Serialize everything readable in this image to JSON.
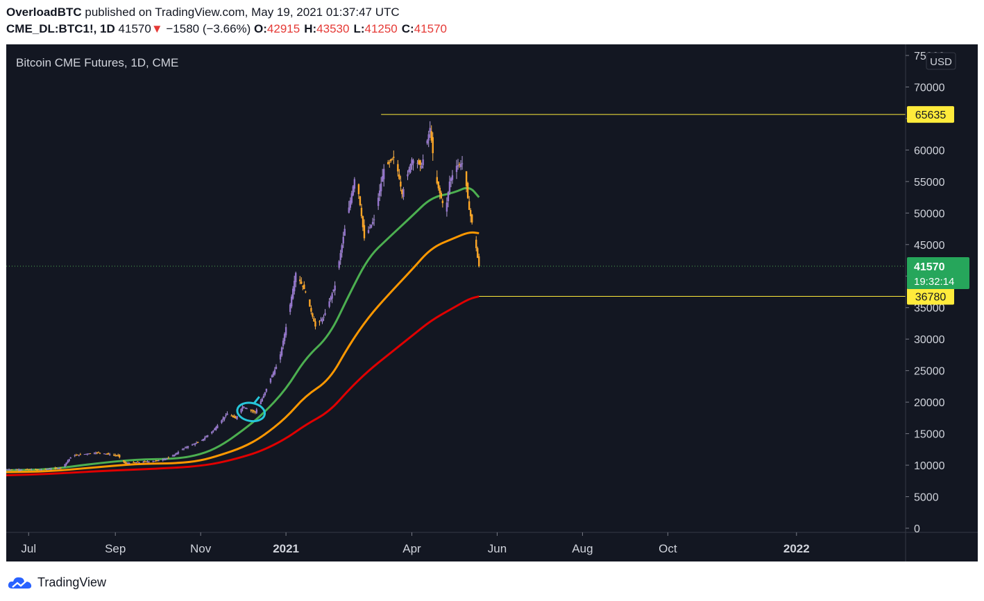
{
  "header": {
    "author": "OverloadBTC",
    "published_text": " published on TradingView.com, May 19, 2021 01:37:47 UTC",
    "symbol": "CME_DL:BTC1!, 1D",
    "last": "41570",
    "arrow": "▼",
    "change": "−1580 (−3.66%)",
    "ohlc": [
      {
        "label": "O:",
        "value": "42915"
      },
      {
        "label": "H:",
        "value": "43530"
      },
      {
        "label": "L:",
        "value": "41250"
      },
      {
        "label": "C:",
        "value": "41570"
      }
    ]
  },
  "chart_data": {
    "type": "candlestick",
    "title": "Bitcoin CME Futures, 1D, CME",
    "currency": "USD",
    "ylim": [
      0,
      75000
    ],
    "y_ticks": [
      0,
      5000,
      10000,
      15000,
      20000,
      25000,
      30000,
      35000,
      40000,
      45000,
      50000,
      55000,
      60000,
      65000,
      70000,
      75000
    ],
    "x_tick_labels": [
      "Jul",
      "Sep",
      "Nov",
      "2021",
      "Apr",
      "Jun",
      "Aug",
      "Oct",
      "2022"
    ],
    "x_tick_dates": [
      "2020-07-01",
      "2020-09-01",
      "2020-11-01",
      "2021-01-01",
      "2021-04-01",
      "2021-06-01",
      "2021-08-01",
      "2021-10-01",
      "2022-01-01"
    ],
    "x_range": [
      "2020-06-15",
      "2022-03-20"
    ],
    "last_price": 41570,
    "last_price_label": "41570",
    "countdown": "19:32:14",
    "horizontal_levels": [
      {
        "value": 65635,
        "label": "65635",
        "start_date": "2021-03-10",
        "color": "#ffeb3b"
      },
      {
        "value": 36780,
        "label": "36780",
        "start_date": "2021-05-19",
        "color": "#ffeb3b"
      }
    ],
    "price_path": [
      [
        "2020-06-15",
        9300
      ],
      [
        "2020-07-10",
        9300
      ],
      [
        "2020-07-25",
        9600
      ],
      [
        "2020-08-01",
        11500
      ],
      [
        "2020-08-15",
        11900
      ],
      [
        "2020-08-20",
        12000
      ],
      [
        "2020-09-03",
        11500
      ],
      [
        "2020-09-08",
        10300
      ],
      [
        "2020-10-01",
        10700
      ],
      [
        "2020-10-10",
        11200
      ],
      [
        "2020-10-21",
        12800
      ],
      [
        "2020-11-01",
        13800
      ],
      [
        "2020-11-10",
        15500
      ],
      [
        "2020-11-20",
        18200
      ],
      [
        "2020-11-26",
        17400
      ],
      [
        "2020-12-01",
        19300
      ],
      [
        "2020-12-10",
        18400
      ],
      [
        "2020-12-16",
        21000
      ],
      [
        "2020-12-21",
        23800
      ],
      [
        "2020-12-27",
        26500
      ],
      [
        "2021-01-02",
        33000
      ],
      [
        "2021-01-08",
        40500
      ],
      [
        "2021-01-15",
        37500
      ],
      [
        "2021-01-22",
        32000
      ],
      [
        "2021-01-28",
        33500
      ],
      [
        "2021-02-05",
        38500
      ],
      [
        "2021-02-12",
        47500
      ],
      [
        "2021-02-20",
        56500
      ],
      [
        "2021-02-26",
        46000
      ],
      [
        "2021-03-05",
        49000
      ],
      [
        "2021-03-12",
        57000
      ],
      [
        "2021-03-20",
        59000
      ],
      [
        "2021-03-25",
        53000
      ],
      [
        "2021-04-01",
        58500
      ],
      [
        "2021-04-08",
        57500
      ],
      [
        "2021-04-14",
        63500
      ],
      [
        "2021-04-18",
        55500
      ],
      [
        "2021-04-25",
        50000
      ],
      [
        "2021-04-28",
        55000
      ],
      [
        "2021-05-03",
        57500
      ],
      [
        "2021-05-08",
        58000
      ],
      [
        "2021-05-12",
        50500
      ],
      [
        "2021-05-15",
        47500
      ],
      [
        "2021-05-18",
        42900
      ],
      [
        "2021-05-19",
        41570
      ]
    ],
    "series": [
      {
        "name": "MA green",
        "color": "#4caf50",
        "points": [
          [
            "2020-06-15",
            9200
          ],
          [
            "2020-07-15",
            9300
          ],
          [
            "2020-08-15",
            10200
          ],
          [
            "2020-09-15",
            10900
          ],
          [
            "2020-10-15",
            11000
          ],
          [
            "2020-11-01",
            11700
          ],
          [
            "2020-11-15",
            13000
          ],
          [
            "2020-12-01",
            15500
          ],
          [
            "2020-12-15",
            18000
          ],
          [
            "2021-01-01",
            22000
          ],
          [
            "2021-01-15",
            27000
          ],
          [
            "2021-02-01",
            30500
          ],
          [
            "2021-02-15",
            37000
          ],
          [
            "2021-03-01",
            43000
          ],
          [
            "2021-03-15",
            46000
          ],
          [
            "2021-04-01",
            49500
          ],
          [
            "2021-04-15",
            52500
          ],
          [
            "2021-05-01",
            53200
          ],
          [
            "2021-05-12",
            54300
          ],
          [
            "2021-05-19",
            52500
          ]
        ]
      },
      {
        "name": "MA orange",
        "color": "#ff9800",
        "points": [
          [
            "2020-06-15",
            8900
          ],
          [
            "2020-07-15",
            9000
          ],
          [
            "2020-08-15",
            9600
          ],
          [
            "2020-09-15",
            10200
          ],
          [
            "2020-10-15",
            10300
          ],
          [
            "2020-11-01",
            10700
          ],
          [
            "2020-11-15",
            11600
          ],
          [
            "2020-12-01",
            12800
          ],
          [
            "2020-12-15",
            14500
          ],
          [
            "2021-01-01",
            17500
          ],
          [
            "2021-01-15",
            21000
          ],
          [
            "2021-02-01",
            23500
          ],
          [
            "2021-02-15",
            29000
          ],
          [
            "2021-03-01",
            33500
          ],
          [
            "2021-03-15",
            37000
          ],
          [
            "2021-04-01",
            41000
          ],
          [
            "2021-04-15",
            44500
          ],
          [
            "2021-05-01",
            46000
          ],
          [
            "2021-05-12",
            47000
          ],
          [
            "2021-05-19",
            46800
          ]
        ]
      },
      {
        "name": "MA red",
        "color": "#e00000",
        "points": [
          [
            "2020-06-15",
            8400
          ],
          [
            "2020-07-15",
            8600
          ],
          [
            "2020-08-15",
            9000
          ],
          [
            "2020-09-15",
            9300
          ],
          [
            "2020-10-15",
            9600
          ],
          [
            "2020-11-01",
            9900
          ],
          [
            "2020-11-15",
            10400
          ],
          [
            "2020-12-01",
            11300
          ],
          [
            "2020-12-15",
            12300
          ],
          [
            "2021-01-01",
            14200
          ],
          [
            "2021-01-15",
            16400
          ],
          [
            "2021-02-01",
            18500
          ],
          [
            "2021-02-15",
            22000
          ],
          [
            "2021-03-01",
            25000
          ],
          [
            "2021-03-15",
            27500
          ],
          [
            "2021-04-01",
            30500
          ],
          [
            "2021-04-15",
            33000
          ],
          [
            "2021-05-01",
            35000
          ],
          [
            "2021-05-12",
            36400
          ],
          [
            "2021-05-19",
            36780
          ]
        ]
      }
    ],
    "annotation": {
      "type": "circle",
      "date": "2020-12-07",
      "value": 18000,
      "color": "#26c6da"
    }
  },
  "footer": {
    "brand": "TradingView"
  }
}
